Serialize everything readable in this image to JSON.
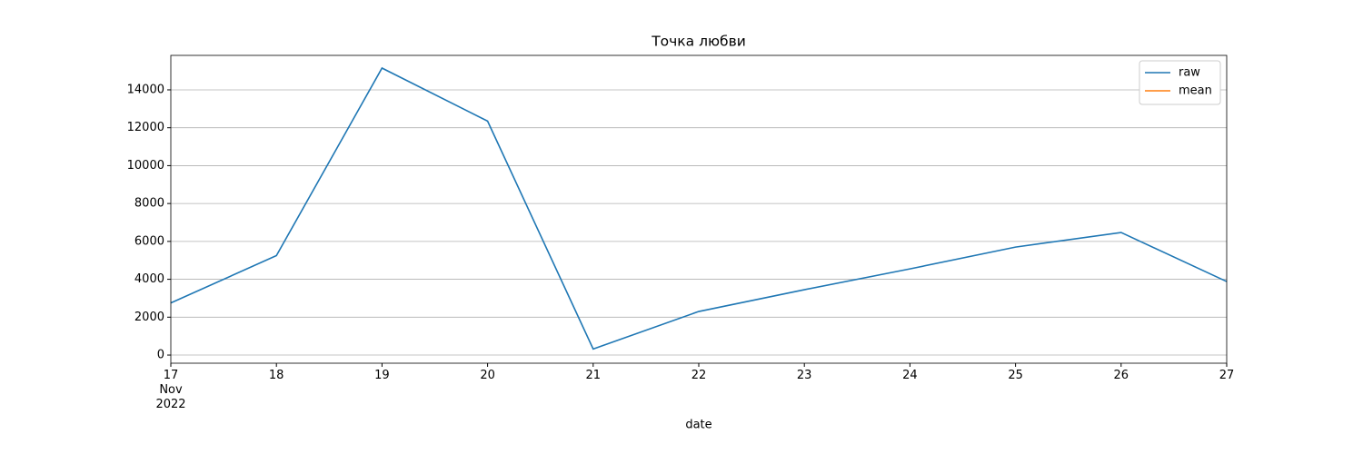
{
  "chart_data": {
    "type": "line",
    "title": "Точка любви",
    "xlabel": "date",
    "x": [
      "2022-11-17",
      "2022-11-18",
      "2022-11-19",
      "2022-11-20",
      "2022-11-21",
      "2022-11-22",
      "2022-11-23",
      "2022-11-24",
      "2022-11-25",
      "2022-11-26",
      "2022-11-27"
    ],
    "series": [
      {
        "name": "raw",
        "color": "#1f77b4",
        "values": [
          2750,
          5250,
          15150,
          12350,
          320,
          2300,
          3450,
          4550,
          5700,
          6470,
          3880
        ]
      },
      {
        "name": "mean",
        "color": "#ff7f0e",
        "values": [
          null,
          null,
          null,
          null,
          null,
          null,
          null,
          null,
          null,
          null,
          null
        ]
      }
    ],
    "xlim": [
      "2022-11-17",
      "2022-11-27"
    ],
    "xticks": [
      {
        "value": "2022-11-17",
        "label": "17\nNov\n2022"
      },
      {
        "value": "2022-11-18",
        "label": "18"
      },
      {
        "value": "2022-11-19",
        "label": "19"
      },
      {
        "value": "2022-11-20",
        "label": "20"
      },
      {
        "value": "2022-11-21",
        "label": "21"
      },
      {
        "value": "2022-11-22",
        "label": "22"
      },
      {
        "value": "2022-11-23",
        "label": "23"
      },
      {
        "value": "2022-11-24",
        "label": "24"
      },
      {
        "value": "2022-11-25",
        "label": "25"
      },
      {
        "value": "2022-11-26",
        "label": "26"
      },
      {
        "value": "2022-11-27",
        "label": "27"
      }
    ],
    "ylim": [
      -430,
      15820
    ],
    "yticks": [
      0,
      2000,
      4000,
      6000,
      8000,
      10000,
      12000,
      14000
    ],
    "grid": "y",
    "legend": "upper right"
  }
}
